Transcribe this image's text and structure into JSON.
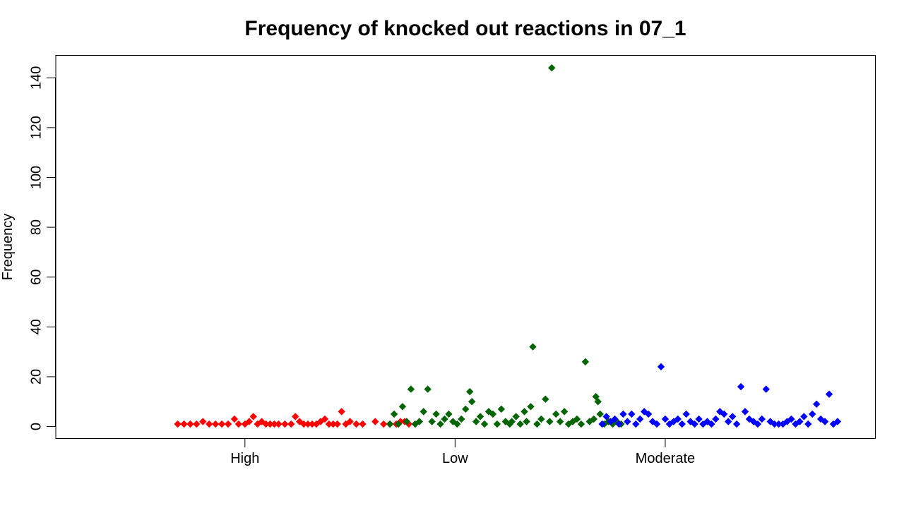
{
  "chart_data": {
    "type": "scatter",
    "title": "Frequency of knocked out reactions in 07_1",
    "xlabel": "",
    "ylabel": "Frequency",
    "categories": [
      "High",
      "Low",
      "Moderate"
    ],
    "xlim": [
      0.1,
      4.0
    ],
    "ylim": [
      -4.8,
      149
    ],
    "y_ticks": [
      0,
      20,
      40,
      60,
      80,
      100,
      120,
      140
    ],
    "grid": false,
    "legend": "none",
    "marker": "diamond",
    "series": [
      {
        "category": "High",
        "color": "#ff0000",
        "points": [
          [
            0.68,
            1
          ],
          [
            0.71,
            1
          ],
          [
            0.74,
            1
          ],
          [
            0.77,
            1
          ],
          [
            0.8,
            2
          ],
          [
            0.83,
            1
          ],
          [
            0.86,
            1
          ],
          [
            0.89,
            1
          ],
          [
            0.92,
            1
          ],
          [
            0.95,
            3
          ],
          [
            0.97,
            1
          ],
          [
            1.0,
            1
          ],
          [
            1.02,
            2
          ],
          [
            1.04,
            4
          ],
          [
            1.06,
            1
          ],
          [
            1.08,
            2
          ],
          [
            1.1,
            1
          ],
          [
            1.12,
            1
          ],
          [
            1.14,
            1
          ],
          [
            1.16,
            1
          ],
          [
            1.19,
            1
          ],
          [
            1.22,
            1
          ],
          [
            1.24,
            4
          ],
          [
            1.26,
            2
          ],
          [
            1.28,
            1
          ],
          [
            1.3,
            1
          ],
          [
            1.32,
            1
          ],
          [
            1.34,
            1
          ],
          [
            1.36,
            2
          ],
          [
            1.38,
            3
          ],
          [
            1.4,
            1
          ],
          [
            1.42,
            1
          ],
          [
            1.44,
            1
          ],
          [
            1.46,
            6
          ],
          [
            1.48,
            1
          ],
          [
            1.5,
            2
          ],
          [
            1.53,
            1
          ],
          [
            1.56,
            1
          ],
          [
            1.62,
            2
          ],
          [
            1.66,
            1
          ],
          [
            1.69,
            1
          ],
          [
            1.72,
            1
          ],
          [
            1.74,
            2
          ],
          [
            1.76,
            2
          ],
          [
            1.78,
            1
          ]
        ]
      },
      {
        "category": "Low",
        "color": "#006400",
        "points": [
          [
            1.69,
            1
          ],
          [
            1.71,
            5
          ],
          [
            1.73,
            1
          ],
          [
            1.75,
            8
          ],
          [
            1.77,
            2
          ],
          [
            1.79,
            15
          ],
          [
            1.81,
            1
          ],
          [
            1.83,
            2
          ],
          [
            1.85,
            6
          ],
          [
            1.87,
            15
          ],
          [
            1.89,
            2
          ],
          [
            1.91,
            5
          ],
          [
            1.93,
            1
          ],
          [
            1.95,
            3
          ],
          [
            1.97,
            5
          ],
          [
            1.99,
            2
          ],
          [
            2.01,
            1
          ],
          [
            2.03,
            3
          ],
          [
            2.05,
            7
          ],
          [
            2.07,
            14
          ],
          [
            2.08,
            10
          ],
          [
            2.1,
            2
          ],
          [
            2.12,
            4
          ],
          [
            2.14,
            1
          ],
          [
            2.16,
            6
          ],
          [
            2.18,
            5
          ],
          [
            2.2,
            1
          ],
          [
            2.22,
            7
          ],
          [
            2.24,
            2
          ],
          [
            2.26,
            1
          ],
          [
            2.27,
            2
          ],
          [
            2.29,
            4
          ],
          [
            2.31,
            1
          ],
          [
            2.33,
            6
          ],
          [
            2.34,
            2
          ],
          [
            2.36,
            8
          ],
          [
            2.37,
            32
          ],
          [
            2.39,
            1
          ],
          [
            2.41,
            3
          ],
          [
            2.43,
            11
          ],
          [
            2.45,
            2
          ],
          [
            2.46,
            144
          ],
          [
            2.48,
            5
          ],
          [
            2.5,
            2
          ],
          [
            2.52,
            6
          ],
          [
            2.54,
            1
          ],
          [
            2.56,
            2
          ],
          [
            2.58,
            3
          ],
          [
            2.6,
            1
          ],
          [
            2.62,
            26
          ],
          [
            2.64,
            2
          ],
          [
            2.66,
            3
          ],
          [
            2.67,
            12
          ],
          [
            2.68,
            10
          ],
          [
            2.69,
            5
          ],
          [
            2.71,
            1
          ],
          [
            2.73,
            2
          ],
          [
            2.75,
            1
          ],
          [
            2.77,
            2
          ],
          [
            2.79,
            1
          ]
        ]
      },
      {
        "category": "Moderate",
        "color": "#0000ff",
        "points": [
          [
            2.7,
            1
          ],
          [
            2.72,
            4
          ],
          [
            2.74,
            2
          ],
          [
            2.76,
            3
          ],
          [
            2.78,
            1
          ],
          [
            2.8,
            5
          ],
          [
            2.82,
            2
          ],
          [
            2.84,
            5
          ],
          [
            2.86,
            1
          ],
          [
            2.88,
            3
          ],
          [
            2.9,
            6
          ],
          [
            2.92,
            5
          ],
          [
            2.94,
            2
          ],
          [
            2.96,
            1
          ],
          [
            2.98,
            24
          ],
          [
            3.0,
            3
          ],
          [
            3.02,
            1
          ],
          [
            3.04,
            2
          ],
          [
            3.06,
            3
          ],
          [
            3.08,
            1
          ],
          [
            3.1,
            5
          ],
          [
            3.12,
            2
          ],
          [
            3.14,
            1
          ],
          [
            3.16,
            3
          ],
          [
            3.18,
            1
          ],
          [
            3.2,
            2
          ],
          [
            3.22,
            1
          ],
          [
            3.24,
            3
          ],
          [
            3.26,
            6
          ],
          [
            3.28,
            5
          ],
          [
            3.3,
            2
          ],
          [
            3.32,
            4
          ],
          [
            3.34,
            1
          ],
          [
            3.36,
            16
          ],
          [
            3.38,
            6
          ],
          [
            3.4,
            3
          ],
          [
            3.42,
            2
          ],
          [
            3.44,
            1
          ],
          [
            3.46,
            3
          ],
          [
            3.48,
            15
          ],
          [
            3.5,
            2
          ],
          [
            3.52,
            1
          ],
          [
            3.54,
            1
          ],
          [
            3.56,
            1
          ],
          [
            3.58,
            2
          ],
          [
            3.6,
            3
          ],
          [
            3.62,
            1
          ],
          [
            3.64,
            2
          ],
          [
            3.66,
            4
          ],
          [
            3.68,
            1
          ],
          [
            3.7,
            5
          ],
          [
            3.72,
            9
          ],
          [
            3.74,
            3
          ],
          [
            3.76,
            2
          ],
          [
            3.78,
            13
          ],
          [
            3.8,
            1
          ],
          [
            3.82,
            2
          ]
        ]
      }
    ]
  }
}
